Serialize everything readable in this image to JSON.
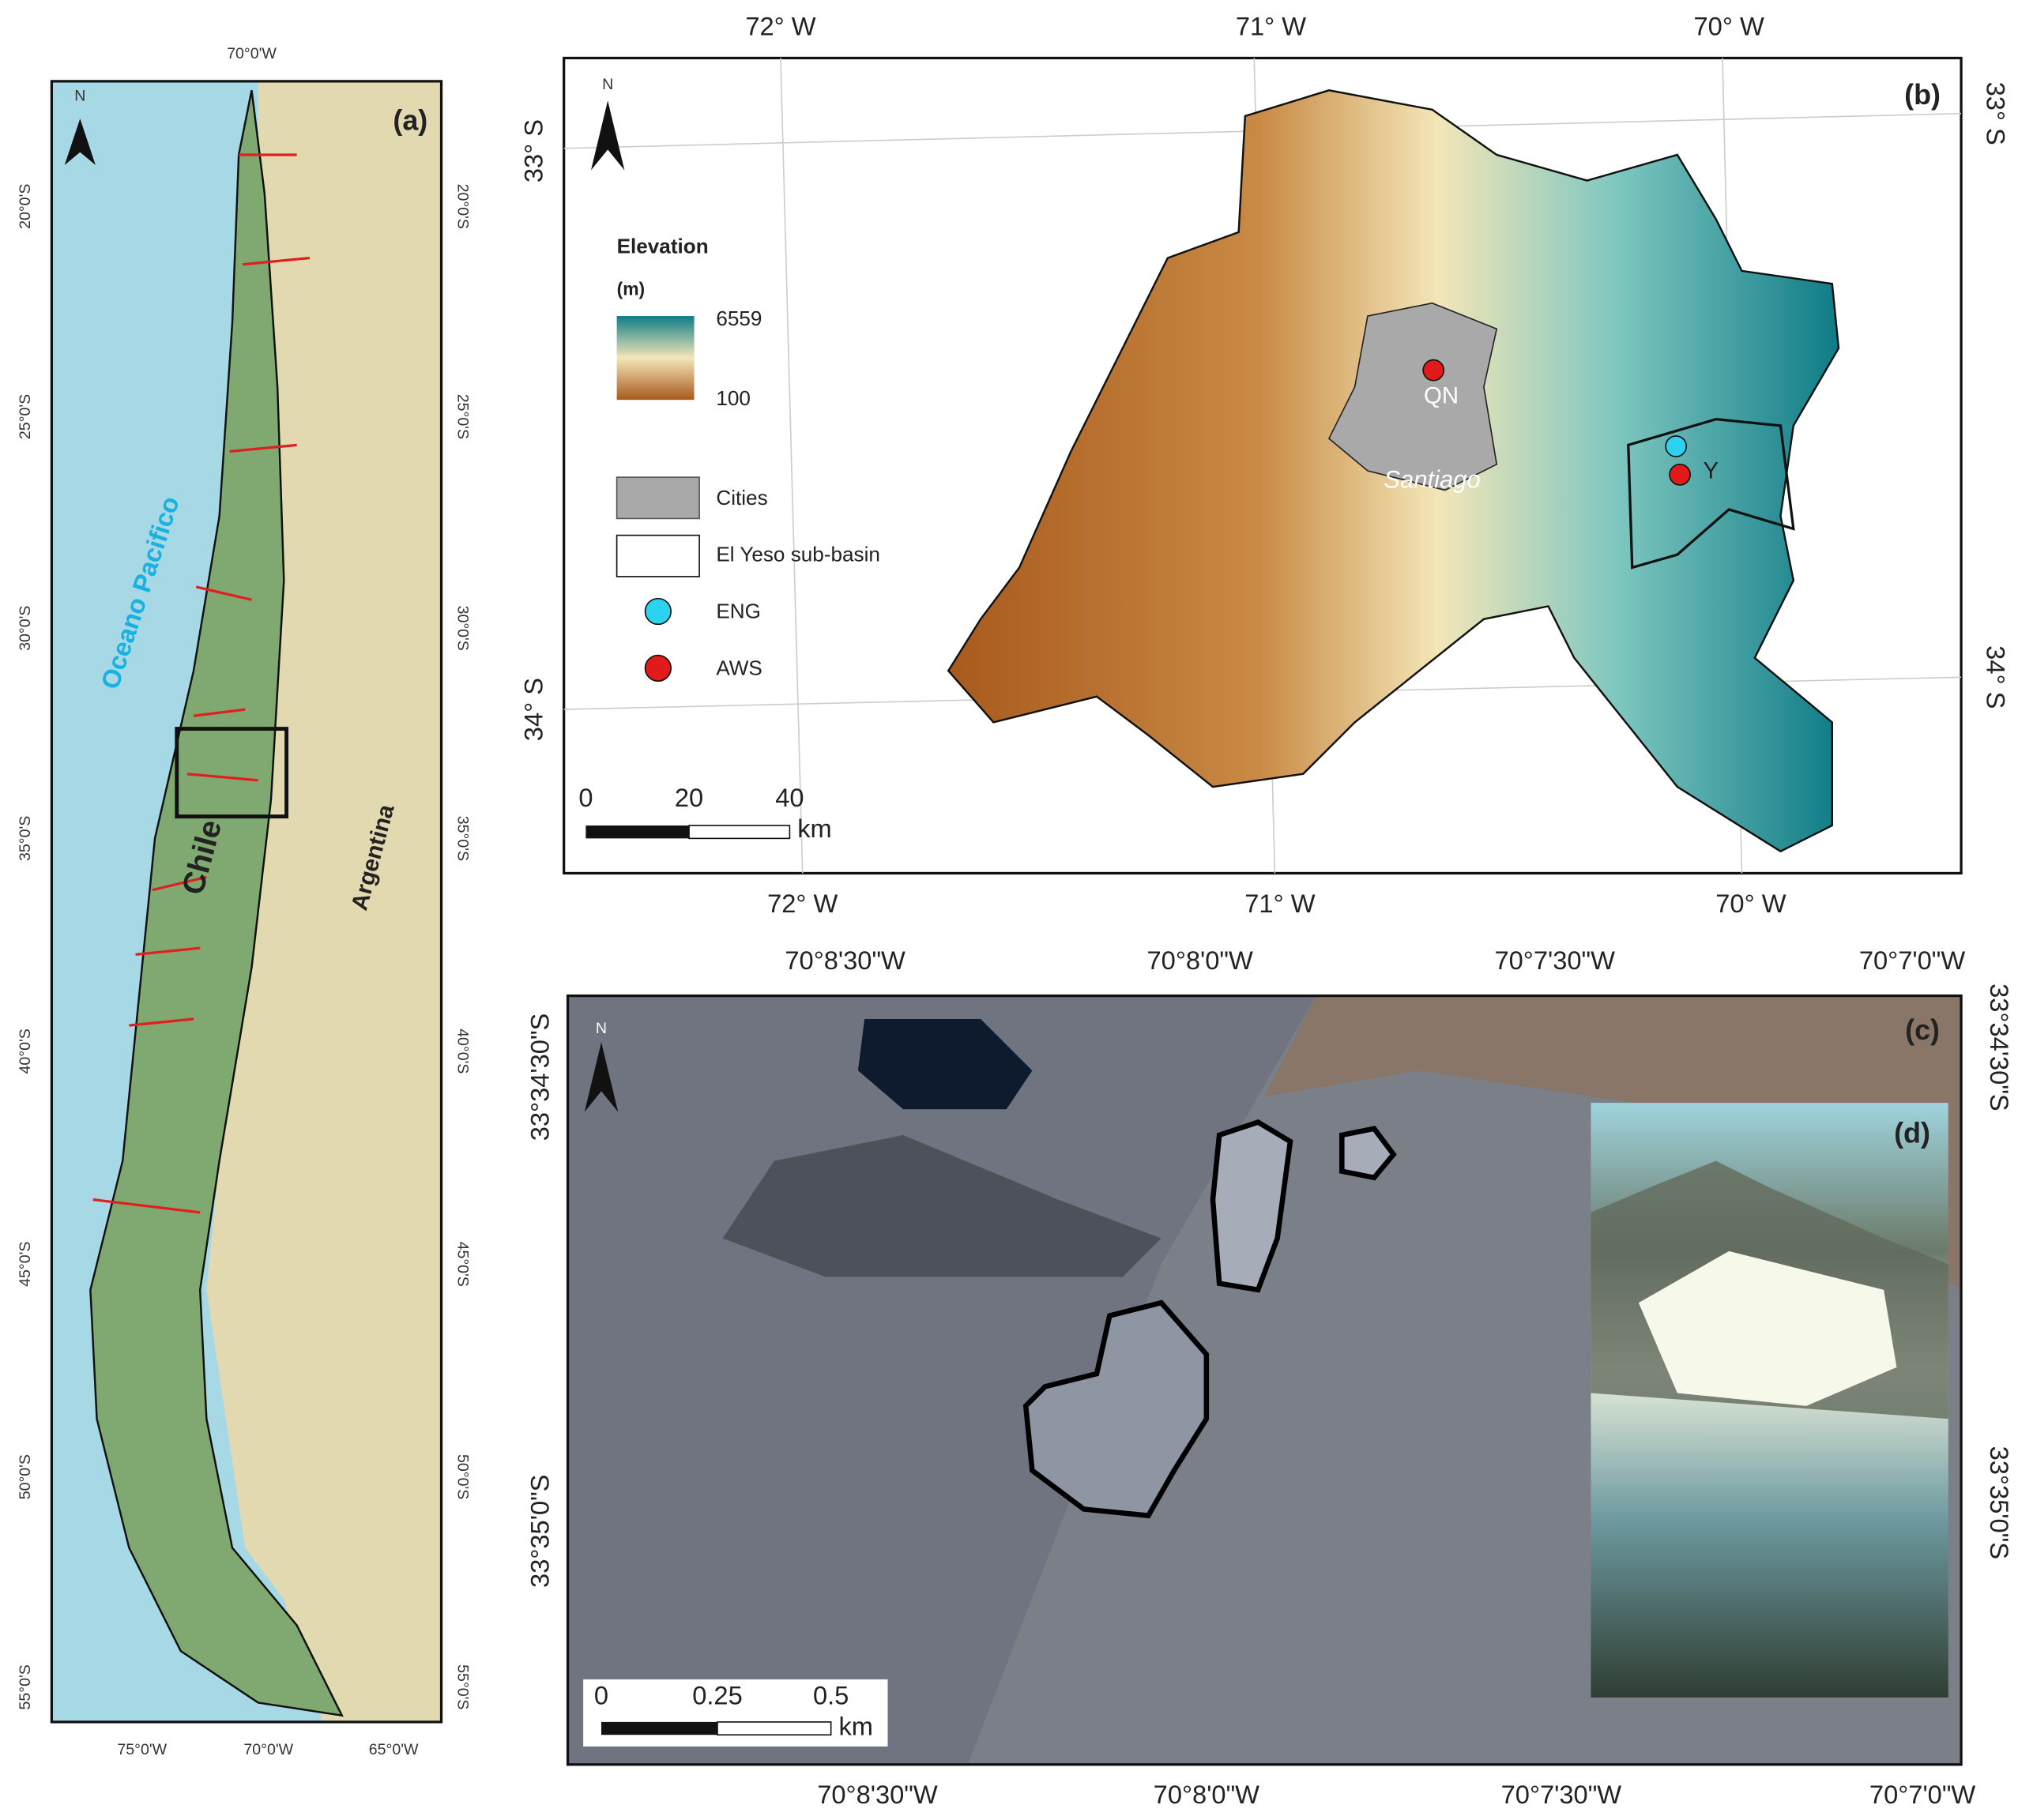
{
  "panel_a": {
    "label": "(a)",
    "north": "N",
    "top_tick": "70°0'W",
    "lat_ticks": [
      "20°0'S",
      "25°0'S",
      "30°0'S",
      "35°0'S",
      "40°0'S",
      "45°0'S",
      "50°0'S",
      "55°0'S"
    ],
    "lon_ticks": [
      "75°0'W",
      "70°0'W",
      "65°0'W"
    ],
    "ocean": "Oceano Pacifico",
    "country": "Chile",
    "neighbor": "Argentina"
  },
  "panel_b": {
    "label": "(b)",
    "north": "N",
    "lon_ticks": [
      "72° W",
      "71° W",
      "70° W"
    ],
    "lat_ticks": [
      "33° S",
      "34° S"
    ],
    "legend": {
      "title": "Elevation",
      "unit": "(m)",
      "max": 6559,
      "min": 100,
      "items": [
        "Cities",
        "El Yeso sub-basin",
        "ENG",
        "AWS"
      ]
    },
    "scale": [
      "0",
      "20",
      "40",
      "km"
    ],
    "places": [
      "QN",
      "Santiago",
      "Y"
    ]
  },
  "panel_c": {
    "label": "(c)",
    "inset_label": "(d)",
    "north": "N",
    "lon_ticks": [
      "70°8'30\"W",
      "70°8'0\"W",
      "70°7'30\"W",
      "70°7'0\"W"
    ],
    "lat_ticks": [
      "33°34'30\"S",
      "33°35'0\"S"
    ],
    "scale": [
      "0",
      "0.25",
      "0.5",
      "km"
    ]
  }
}
